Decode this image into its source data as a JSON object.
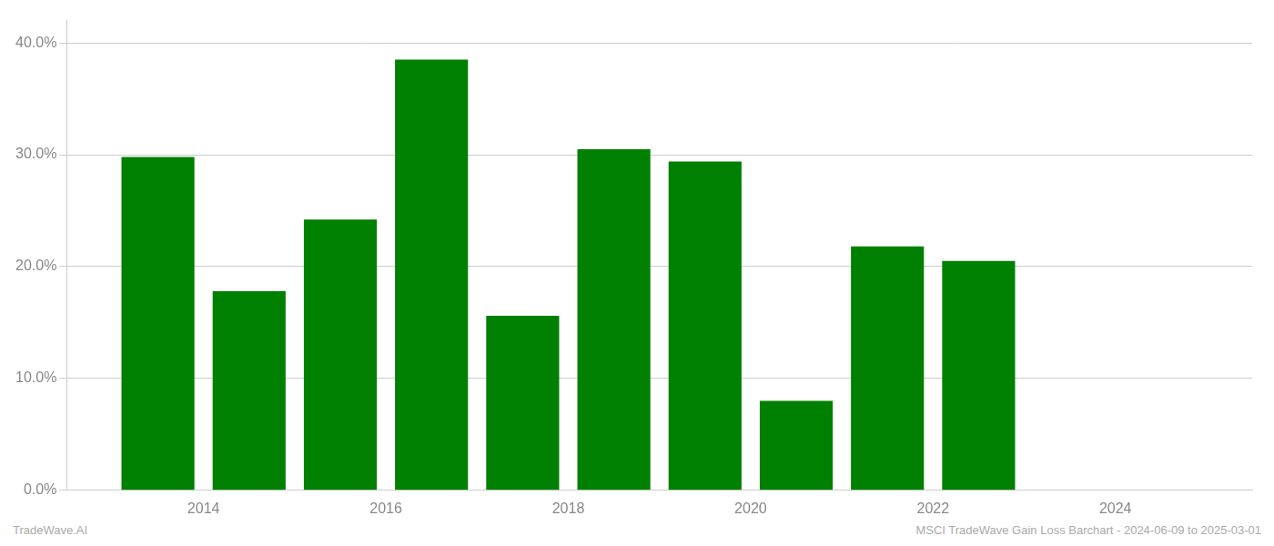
{
  "chart_data": {
    "type": "bar",
    "x": [
      2013.5,
      2014.5,
      2015.5,
      2016.5,
      2017.5,
      2018.5,
      2019.5,
      2020.5,
      2021.5,
      2022.5
    ],
    "values": [
      0.298,
      0.178,
      0.242,
      0.385,
      0.156,
      0.305,
      0.294,
      0.08,
      0.218,
      0.205
    ],
    "color": "#008000",
    "xlim": [
      2012.5,
      2025.5
    ],
    "xticks": [
      2014,
      2016,
      2018,
      2020,
      2022,
      2024
    ],
    "ylim": [
      0,
      0.42
    ],
    "yticks": [
      {
        "value": 0.0,
        "label": "0.0%"
      },
      {
        "value": 0.1,
        "label": "10.0%"
      },
      {
        "value": 0.2,
        "label": "20.0%"
      },
      {
        "value": 0.3,
        "label": "30.0%"
      },
      {
        "value": 0.4,
        "label": "40.0%"
      }
    ],
    "grid": true,
    "annotations": [
      "TradeWave.AI",
      "MSCI TradeWave Gain Loss Barchart - 2024-06-09 to 2025-03-01"
    ]
  }
}
